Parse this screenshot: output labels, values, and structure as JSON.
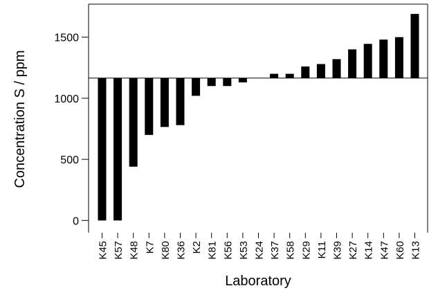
{
  "chart_data": {
    "type": "bar",
    "title": "",
    "xlabel": "Laboratory",
    "ylabel": "Concentration S / ppm",
    "categories": [
      "K45",
      "K57",
      "K48",
      "K7",
      "K80",
      "K36",
      "K2",
      "K81",
      "K56",
      "K53",
      "K24",
      "K37",
      "K58",
      "K29",
      "K11",
      "K39",
      "K27",
      "K14",
      "K47",
      "K60",
      "K13"
    ],
    "values": [
      0,
      0,
      440,
      700,
      765,
      780,
      1020,
      1100,
      1100,
      1130,
      1165,
      1200,
      1200,
      1260,
      1280,
      1320,
      1400,
      1445,
      1480,
      1500,
      1690
    ],
    "reference_value": 1165,
    "ylim": [
      -100,
      1770
    ],
    "yticks": [
      0,
      500,
      1000,
      1500
    ],
    "grid": false,
    "legend": "none",
    "bar_color": "#000000"
  }
}
